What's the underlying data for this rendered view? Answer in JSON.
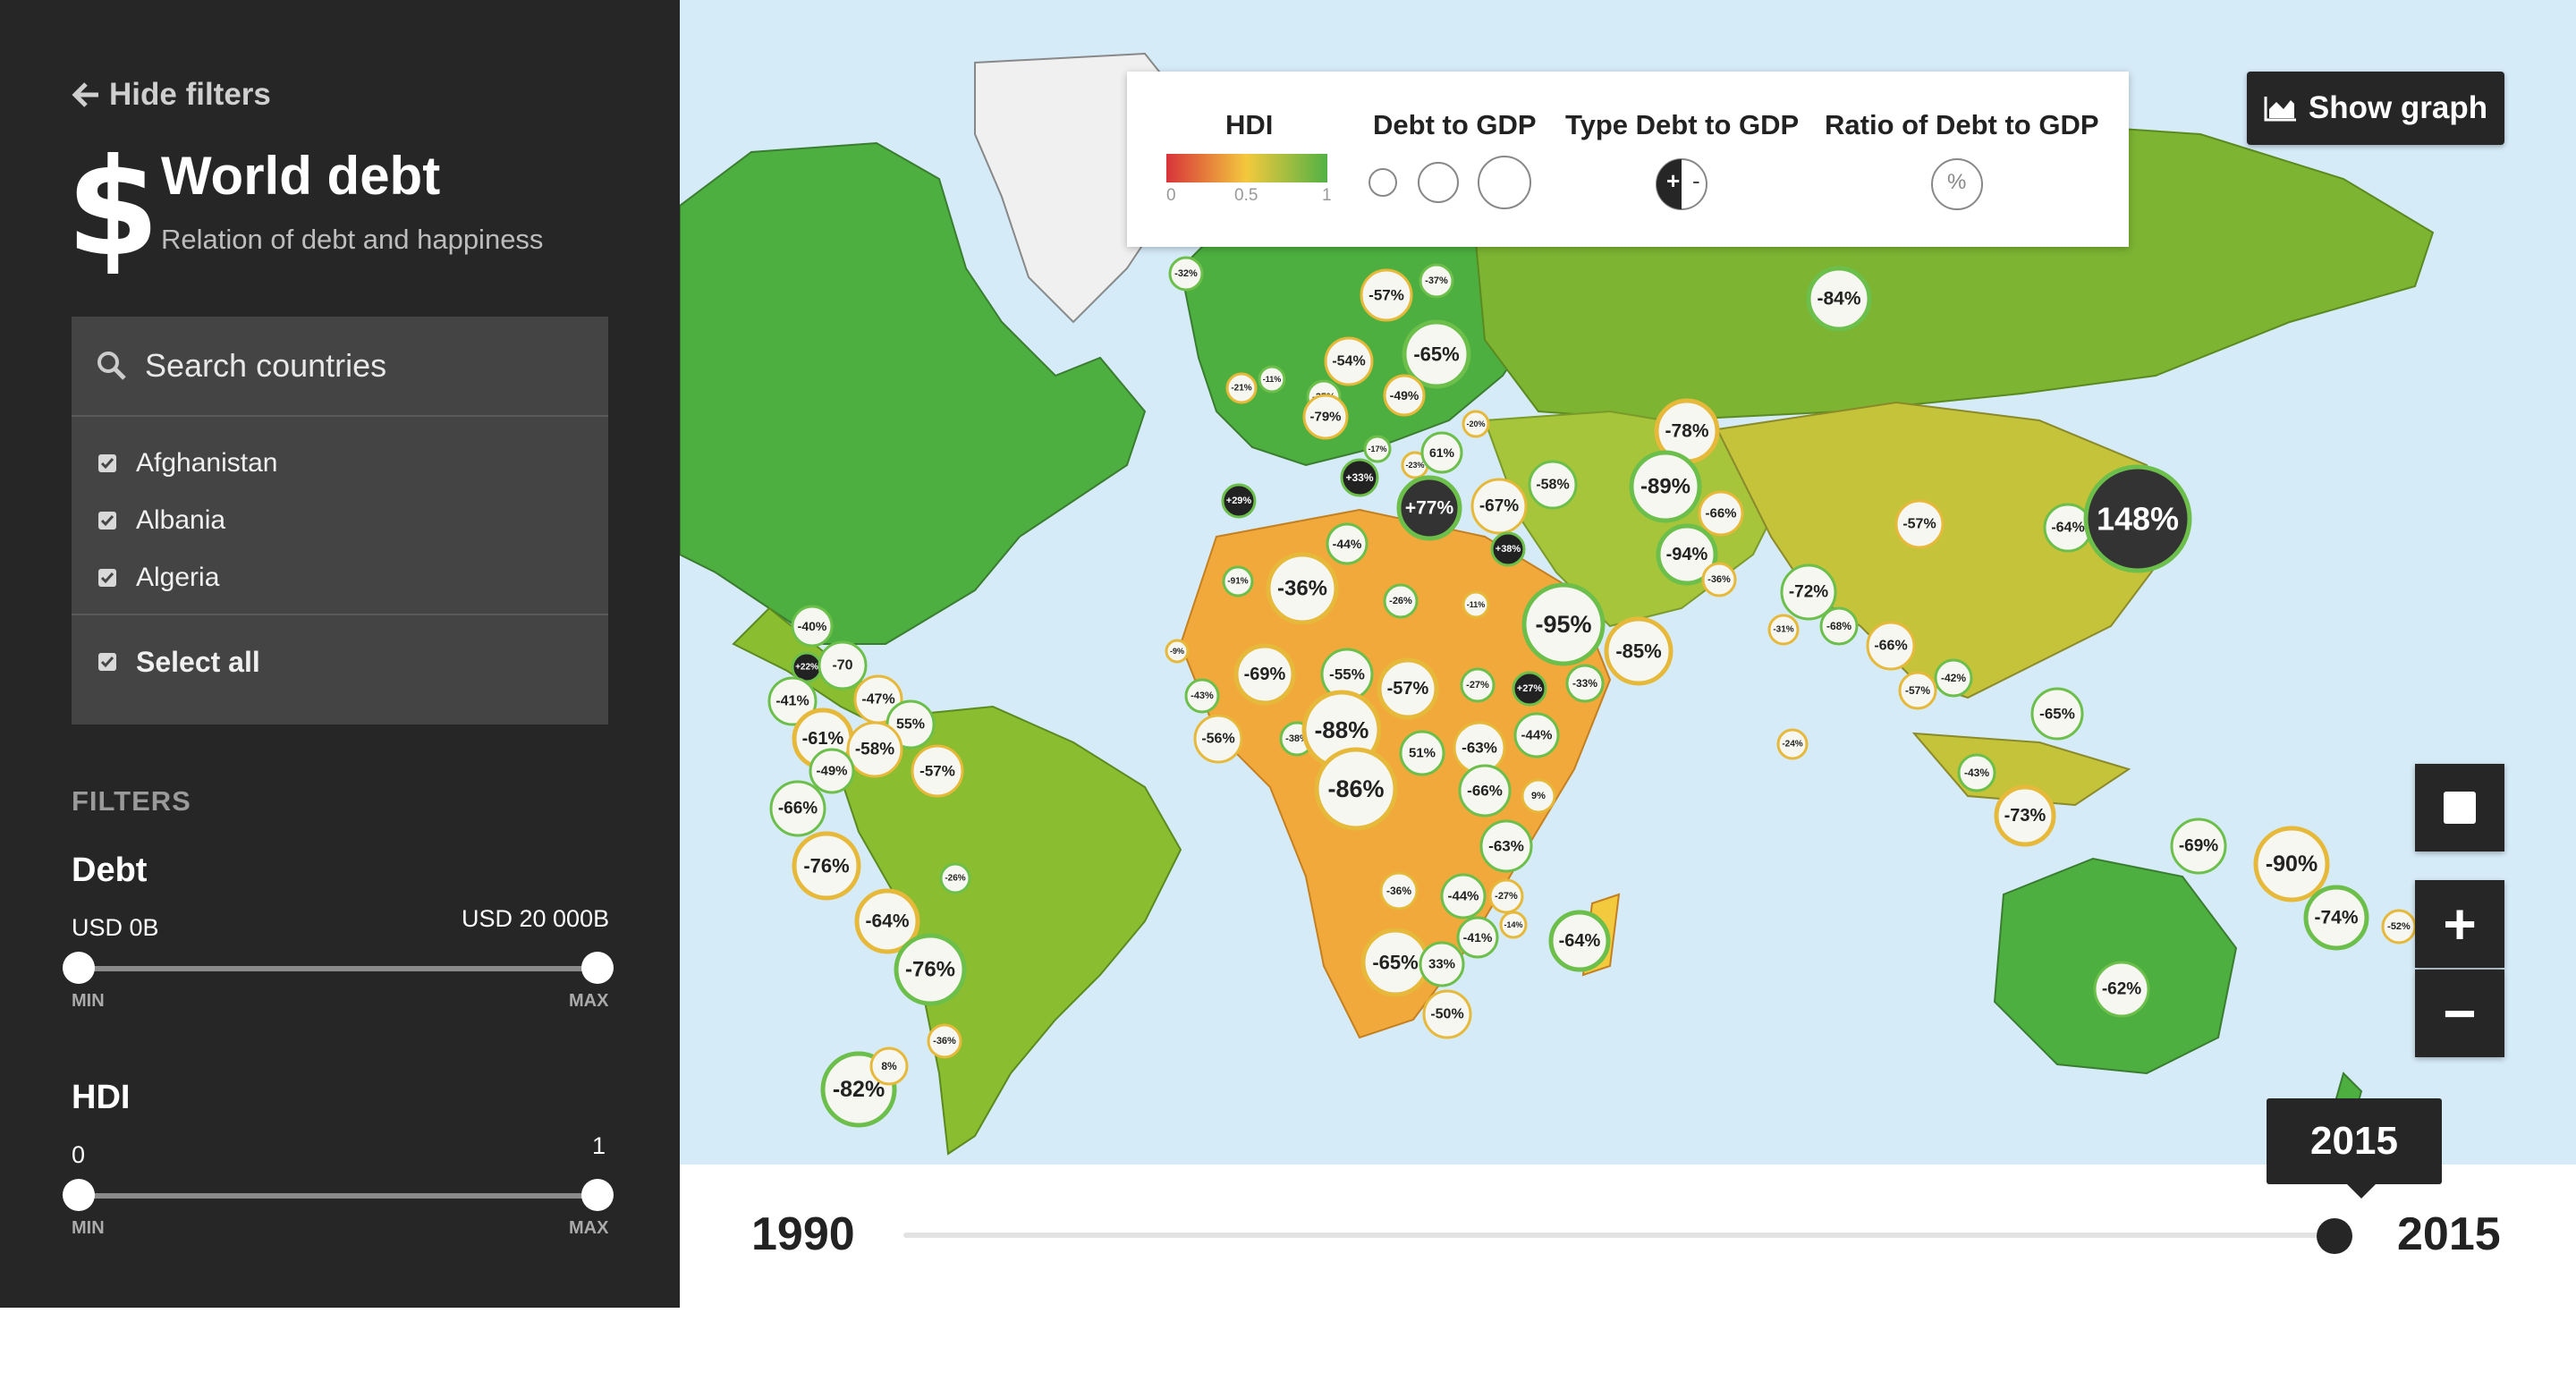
{
  "sidebar": {
    "hide_filters": "Hide filters",
    "title": "World debt",
    "subtitle": "Relation of debt and happiness",
    "search": {
      "placeholder": "Search countries"
    },
    "countries": [
      {
        "label": "Afghanistan",
        "checked": true
      },
      {
        "label": "Albania",
        "checked": true
      },
      {
        "label": "Algeria",
        "checked": true
      }
    ],
    "select_all": "Select all",
    "filters_heading": "FILTERS",
    "debt": {
      "title": "Debt",
      "min_label": "USD 0B",
      "max_label": "USD 20 000B",
      "min_caption": "MIN",
      "max_caption": "MAX",
      "min_value_fraction": 0,
      "max_value_fraction": 1
    },
    "hdi": {
      "title": "HDI",
      "min_label": "0",
      "max_label": "1",
      "min_caption": "MIN",
      "max_caption": "MAX",
      "min_value_fraction": 0,
      "max_value_fraction": 1
    }
  },
  "legend": {
    "hdi_title": "HDI",
    "hdi_ticks": [
      "0",
      "0.5",
      "1"
    ],
    "hdi_colors": [
      "#d8333a",
      "#f3c93d",
      "#52b144"
    ],
    "debt_title": "Debt to GDP",
    "type_title": "Type Debt to GDP",
    "type_plus": "+",
    "type_minus": "-",
    "ratio_title": "Ratio of Debt to GDP",
    "ratio_symbol": "%"
  },
  "toolbar": {
    "show_graph": "Show graph",
    "stop_icon": "square-icon",
    "zoom_in": "+",
    "zoom_out": "−"
  },
  "timeline": {
    "start_year": "1990",
    "end_year": "2015",
    "current_year": "2015",
    "position_fraction": 1
  },
  "bubbles": [
    {
      "label": "-32%"
    },
    {
      "label": "-57%"
    },
    {
      "label": "-37%"
    },
    {
      "label": "-54%"
    },
    {
      "label": "-65%"
    },
    {
      "label": "-49%"
    },
    {
      "label": "-35%"
    },
    {
      "label": "-21%"
    },
    {
      "label": "-11%"
    },
    {
      "label": "-79%"
    },
    {
      "label": "-17%"
    },
    {
      "label": "-23%"
    },
    {
      "label": "61%"
    },
    {
      "label": "-20%"
    },
    {
      "label": "+29%"
    },
    {
      "label": "+33%"
    },
    {
      "label": "+77%"
    },
    {
      "label": "-67%"
    },
    {
      "label": "-58%"
    },
    {
      "label": "-78%"
    },
    {
      "label": "-89%"
    },
    {
      "label": "-66%"
    },
    {
      "label": "-84%"
    },
    {
      "label": "-57%"
    },
    {
      "label": "-64%"
    },
    {
      "label": "148%"
    },
    {
      "label": "-44%"
    },
    {
      "label": "+38%"
    },
    {
      "label": "-94%"
    },
    {
      "label": "-36%"
    },
    {
      "label": "-91%"
    },
    {
      "label": "-36%"
    },
    {
      "label": "-26%"
    },
    {
      "label": "-11%"
    },
    {
      "label": "-95%"
    },
    {
      "label": "-85%"
    },
    {
      "label": "-72%"
    },
    {
      "label": "-31%"
    },
    {
      "label": "-68%"
    },
    {
      "label": "-66%"
    },
    {
      "label": "-42%"
    },
    {
      "label": "-57%"
    },
    {
      "label": "-65%"
    },
    {
      "label": "-24%"
    },
    {
      "label": "-43%"
    },
    {
      "label": "-73%"
    },
    {
      "label": "-69%"
    },
    {
      "label": "-90%"
    },
    {
      "label": "-74%"
    },
    {
      "label": "-52%"
    },
    {
      "label": "-62%"
    },
    {
      "label": "-9%"
    },
    {
      "label": "-43%"
    },
    {
      "label": "-69%"
    },
    {
      "label": "-55%"
    },
    {
      "label": "-57%"
    },
    {
      "label": "-27%"
    },
    {
      "label": "+27%"
    },
    {
      "label": "-33%"
    },
    {
      "label": "-56%"
    },
    {
      "label": "-38%"
    },
    {
      "label": "-88%"
    },
    {
      "label": "51%"
    },
    {
      "label": "-63%"
    },
    {
      "label": "-44%"
    },
    {
      "label": "-86%"
    },
    {
      "label": "-66%"
    },
    {
      "label": "9%"
    },
    {
      "label": "-63%"
    },
    {
      "label": "-36%"
    },
    {
      "label": "-44%"
    },
    {
      "label": "-27%"
    },
    {
      "label": "-41%"
    },
    {
      "label": "-14%"
    },
    {
      "label": "-64%"
    },
    {
      "label": "-65%"
    },
    {
      "label": "33%"
    },
    {
      "label": "-50%"
    },
    {
      "label": "-40%"
    },
    {
      "label": "+22%"
    },
    {
      "label": "-70"
    },
    {
      "label": "-47%"
    },
    {
      "label": "-41%"
    },
    {
      "label": "-61%"
    },
    {
      "label": "55%"
    },
    {
      "label": "-58%"
    },
    {
      "label": "-49%"
    },
    {
      "label": "-57%"
    },
    {
      "label": "-66%"
    },
    {
      "label": "-76%"
    },
    {
      "label": "-26%"
    },
    {
      "label": "-64%"
    },
    {
      "label": "-76%"
    },
    {
      "label": "-36%"
    },
    {
      "label": "-82%"
    },
    {
      "label": "8%"
    }
  ]
}
